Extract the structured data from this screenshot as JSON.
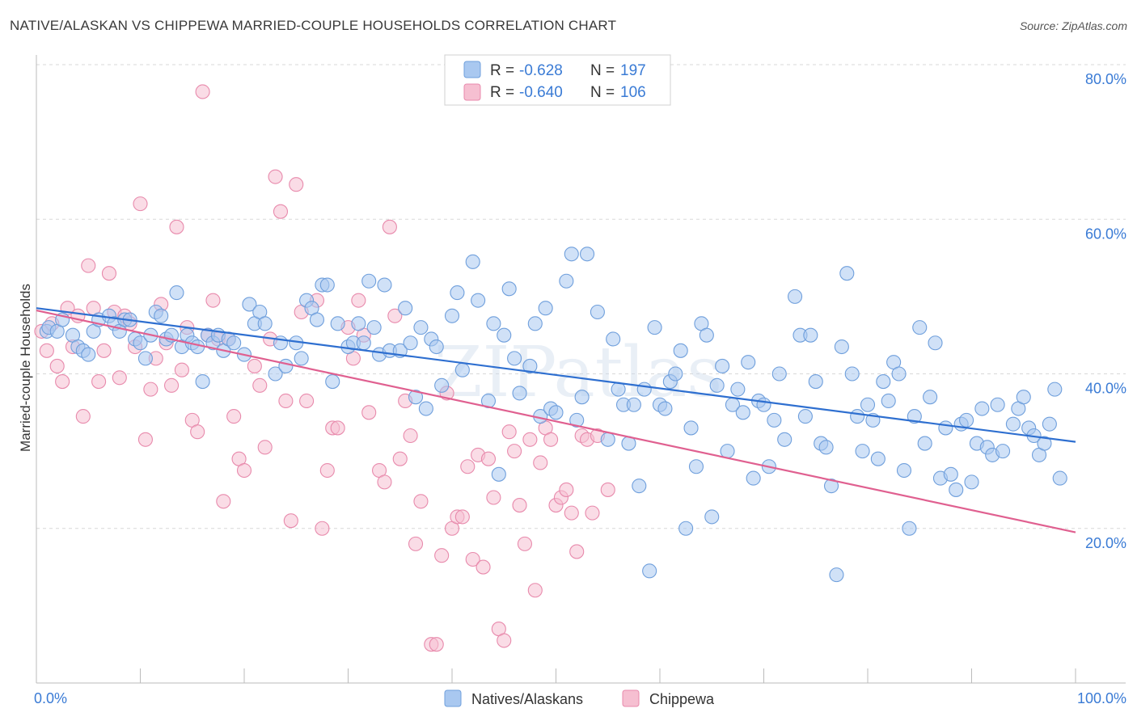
{
  "title": "NATIVE/ALASKAN VS CHIPPEWA MARRIED-COUPLE HOUSEHOLDS CORRELATION CHART",
  "source": "Source: ZipAtlas.com",
  "watermark": "ZIPatlas",
  "colors": {
    "blue_fill": "#a9c8f0",
    "blue_stroke": "#6f9fdc",
    "blue_line": "#2e6fd0",
    "pink_fill": "#f6bfd1",
    "pink_stroke": "#e88aac",
    "pink_line": "#e06090",
    "grid": "#d8d8d8",
    "tick_text": "#3a7bd5"
  },
  "legend": {
    "r_label": "R =",
    "n_label": "N =",
    "rows": [
      {
        "series": "Natives/Alaskans",
        "r": "-0.628",
        "n": "197"
      },
      {
        "series": "Chippewa",
        "r": "-0.640",
        "n": "106"
      }
    ]
  },
  "chart_data": {
    "type": "scatter",
    "xlabel": "",
    "ylabel": "Married-couple Households",
    "xlim": [
      0,
      100
    ],
    "ylim": [
      0,
      80
    ],
    "x_tick_labels": [
      {
        "value": 0,
        "label": "0.0%"
      },
      {
        "value": 100,
        "label": "100.0%"
      }
    ],
    "y_tick_labels": [
      {
        "value": 20,
        "label": "20.0%"
      },
      {
        "value": 40,
        "label": "40.0%"
      },
      {
        "value": 60,
        "label": "60.0%"
      },
      {
        "value": 80,
        "label": "80.0%"
      }
    ],
    "x_minor_ticks": [
      0,
      10,
      20,
      30,
      40,
      50,
      60,
      70,
      80,
      90,
      100
    ],
    "series": [
      {
        "name": "Natives/Alaskans",
        "trend": {
          "x0": 0,
          "y0": 48.5,
          "x1": 100,
          "y1": 31.2
        },
        "points": [
          [
            1,
            45.5
          ],
          [
            1.2,
            46
          ],
          [
            2,
            45.5
          ],
          [
            2.5,
            47
          ],
          [
            3.5,
            45
          ],
          [
            4,
            43.5
          ],
          [
            4.5,
            43
          ],
          [
            5,
            42.5
          ],
          [
            5.5,
            45.5
          ],
          [
            6,
            47
          ],
          [
            7,
            47.5
          ],
          [
            7.5,
            46.5
          ],
          [
            8,
            45.5
          ],
          [
            8.5,
            47
          ],
          [
            9,
            47
          ],
          [
            9.5,
            44.5
          ],
          [
            10,
            44
          ],
          [
            10.5,
            42
          ],
          [
            11,
            45
          ],
          [
            11.5,
            48
          ],
          [
            12,
            47.5
          ],
          [
            12.5,
            44.5
          ],
          [
            13,
            45
          ],
          [
            13.5,
            50.5
          ],
          [
            14,
            43.5
          ],
          [
            14.5,
            45
          ],
          [
            15,
            44
          ],
          [
            15.5,
            43.5
          ],
          [
            16,
            39
          ],
          [
            16.5,
            45
          ],
          [
            17,
            44
          ],
          [
            17.5,
            45
          ],
          [
            18,
            43
          ],
          [
            18.5,
            44.5
          ],
          [
            19,
            44
          ],
          [
            20,
            42.5
          ],
          [
            20.5,
            49
          ],
          [
            21,
            46.5
          ],
          [
            21.5,
            48
          ],
          [
            22,
            46.5
          ],
          [
            23,
            40
          ],
          [
            23.5,
            44
          ],
          [
            24,
            41
          ],
          [
            25,
            44
          ],
          [
            25.5,
            42
          ],
          [
            26,
            49.5
          ],
          [
            26.5,
            48.5
          ],
          [
            27,
            47
          ],
          [
            27.5,
            51.5
          ],
          [
            28,
            51.5
          ],
          [
            28.5,
            39
          ],
          [
            29,
            46.5
          ],
          [
            30,
            43.5
          ],
          [
            30.5,
            44
          ],
          [
            31,
            46.5
          ],
          [
            31.5,
            44
          ],
          [
            32,
            52
          ],
          [
            32.5,
            46
          ],
          [
            33,
            42.5
          ],
          [
            33.5,
            51.5
          ],
          [
            34,
            43
          ],
          [
            35,
            43
          ],
          [
            35.5,
            48.5
          ],
          [
            36,
            44
          ],
          [
            36.5,
            37
          ],
          [
            37,
            46
          ],
          [
            37.5,
            35.5
          ],
          [
            38,
            44.5
          ],
          [
            38.5,
            43.5
          ],
          [
            39,
            38.5
          ],
          [
            40,
            47.5
          ],
          [
            40.5,
            50.5
          ],
          [
            41,
            40.5
          ],
          [
            42,
            54.5
          ],
          [
            42.5,
            49.5
          ],
          [
            43.5,
            36.5
          ],
          [
            44,
            46.5
          ],
          [
            44.5,
            27
          ],
          [
            45,
            45
          ],
          [
            45.5,
            51
          ],
          [
            46,
            42
          ],
          [
            46.5,
            37.5
          ],
          [
            47.5,
            41
          ],
          [
            48,
            46.5
          ],
          [
            48.5,
            34.5
          ],
          [
            49,
            48.5
          ],
          [
            49.5,
            35.5
          ],
          [
            50,
            35
          ],
          [
            51,
            52
          ],
          [
            51.5,
            55.5
          ],
          [
            52,
            34
          ],
          [
            52.5,
            37
          ],
          [
            53,
            55.5
          ],
          [
            54,
            48
          ],
          [
            55,
            31.5
          ],
          [
            55.5,
            44.5
          ],
          [
            56,
            38
          ],
          [
            56.5,
            36
          ],
          [
            57,
            31
          ],
          [
            57.5,
            36
          ],
          [
            58,
            25.5
          ],
          [
            58.5,
            38
          ],
          [
            59,
            14.5
          ],
          [
            59.5,
            46
          ],
          [
            60,
            36
          ],
          [
            60.5,
            35.5
          ],
          [
            61,
            39
          ],
          [
            61.5,
            40
          ],
          [
            62,
            43
          ],
          [
            62.5,
            20
          ],
          [
            63,
            33
          ],
          [
            63.5,
            28
          ],
          [
            64,
            46.5
          ],
          [
            64.5,
            45
          ],
          [
            65,
            21.5
          ],
          [
            65.5,
            38.5
          ],
          [
            66,
            41
          ],
          [
            66.5,
            30
          ],
          [
            67,
            36
          ],
          [
            67.5,
            38
          ],
          [
            68,
            35
          ],
          [
            68.5,
            41.5
          ],
          [
            69,
            26.5
          ],
          [
            69.5,
            36.5
          ],
          [
            70,
            36
          ],
          [
            70.5,
            28
          ],
          [
            71,
            34
          ],
          [
            71.5,
            40
          ],
          [
            72,
            31.5
          ],
          [
            73,
            50
          ],
          [
            73.5,
            45
          ],
          [
            74,
            34.5
          ],
          [
            74.5,
            45
          ],
          [
            75,
            39
          ],
          [
            75.5,
            31
          ],
          [
            76,
            30.5
          ],
          [
            76.5,
            25.5
          ],
          [
            77,
            14
          ],
          [
            77.5,
            43.5
          ],
          [
            78,
            53
          ],
          [
            78.5,
            40
          ],
          [
            79,
            34.5
          ],
          [
            79.5,
            30
          ],
          [
            80,
            36
          ],
          [
            80.5,
            34
          ],
          [
            81,
            29
          ],
          [
            81.5,
            39
          ],
          [
            82,
            36.5
          ],
          [
            82.5,
            41.5
          ],
          [
            83,
            40
          ],
          [
            83.5,
            27.5
          ],
          [
            84,
            20
          ],
          [
            84.5,
            34.5
          ],
          [
            85,
            46
          ],
          [
            85.5,
            31
          ],
          [
            86,
            37
          ],
          [
            86.5,
            44
          ],
          [
            87,
            26.5
          ],
          [
            87.5,
            33
          ],
          [
            88,
            27
          ],
          [
            88.5,
            25
          ],
          [
            89,
            33.5
          ],
          [
            89.5,
            34
          ],
          [
            90,
            26
          ],
          [
            90.5,
            31
          ],
          [
            91,
            35.5
          ],
          [
            91.5,
            30.5
          ],
          [
            92,
            29.5
          ],
          [
            92.5,
            36
          ],
          [
            93,
            30
          ],
          [
            94,
            33.5
          ],
          [
            94.5,
            35.5
          ],
          [
            95,
            37
          ],
          [
            95.5,
            33
          ],
          [
            96,
            32
          ],
          [
            96.5,
            29.5
          ],
          [
            97,
            31
          ],
          [
            97.5,
            33.5
          ],
          [
            98,
            38
          ],
          [
            98.5,
            26.5
          ]
        ]
      },
      {
        "name": "Chippewa",
        "trend": {
          "x0": 0,
          "y0": 48.2,
          "x1": 100,
          "y1": 19.5
        },
        "points": [
          [
            0.5,
            45.5
          ],
          [
            1,
            43
          ],
          [
            1.5,
            46.5
          ],
          [
            2,
            41
          ],
          [
            2.5,
            39
          ],
          [
            3,
            48.5
          ],
          [
            3.5,
            43.5
          ],
          [
            4,
            47.5
          ],
          [
            4.5,
            34.5
          ],
          [
            5,
            54
          ],
          [
            5.5,
            48.5
          ],
          [
            6,
            39
          ],
          [
            6.5,
            43
          ],
          [
            7,
            53
          ],
          [
            7.5,
            48
          ],
          [
            8,
            39.5
          ],
          [
            8.5,
            47.5
          ],
          [
            9,
            46.5
          ],
          [
            9.5,
            43.5
          ],
          [
            10,
            62
          ],
          [
            10.5,
            31.5
          ],
          [
            11,
            38
          ],
          [
            11.5,
            42
          ],
          [
            12,
            49
          ],
          [
            12.5,
            44
          ],
          [
            13,
            38.5
          ],
          [
            13.5,
            59
          ],
          [
            14,
            40.5
          ],
          [
            14.5,
            46
          ],
          [
            15,
            34
          ],
          [
            15.5,
            32.5
          ],
          [
            16,
            76.5
          ],
          [
            16.5,
            45
          ],
          [
            17,
            49.5
          ],
          [
            17.5,
            44.5
          ],
          [
            18,
            23.5
          ],
          [
            18.5,
            44.5
          ],
          [
            19,
            34.5
          ],
          [
            19.5,
            29
          ],
          [
            20,
            27.5
          ],
          [
            21,
            41
          ],
          [
            21.5,
            38.5
          ],
          [
            22,
            30.5
          ],
          [
            22.5,
            44.5
          ],
          [
            23,
            65.5
          ],
          [
            23.5,
            61
          ],
          [
            24,
            36.5
          ],
          [
            24.5,
            21
          ],
          [
            25,
            64.5
          ],
          [
            25.5,
            48
          ],
          [
            26,
            36.5
          ],
          [
            27,
            49.5
          ],
          [
            27.5,
            20
          ],
          [
            28,
            27.5
          ],
          [
            28.5,
            33
          ],
          [
            29,
            33
          ],
          [
            30,
            46
          ],
          [
            30.5,
            42
          ],
          [
            31,
            49.5
          ],
          [
            31.5,
            45
          ],
          [
            32,
            35
          ],
          [
            33,
            27.5
          ],
          [
            33.5,
            26
          ],
          [
            34,
            59
          ],
          [
            34.5,
            47.5
          ],
          [
            35,
            29
          ],
          [
            35.5,
            36.5
          ],
          [
            36,
            32
          ],
          [
            36.5,
            18
          ],
          [
            37,
            23.5
          ],
          [
            38,
            5
          ],
          [
            38.5,
            5
          ],
          [
            39,
            16.5
          ],
          [
            39.5,
            37.5
          ],
          [
            40,
            20
          ],
          [
            40.5,
            21.5
          ],
          [
            41,
            21.5
          ],
          [
            41.5,
            28
          ],
          [
            42,
            16
          ],
          [
            42.5,
            29.5
          ],
          [
            43,
            15
          ],
          [
            43.5,
            29
          ],
          [
            44,
            24
          ],
          [
            44.5,
            7
          ],
          [
            45,
            5.5
          ],
          [
            45.5,
            32.5
          ],
          [
            46,
            30
          ],
          [
            46.5,
            23
          ],
          [
            47,
            18
          ],
          [
            47.5,
            31.5
          ],
          [
            48,
            12
          ],
          [
            48.5,
            28.5
          ],
          [
            49,
            33
          ],
          [
            49.5,
            31.5
          ],
          [
            50,
            23
          ],
          [
            50.5,
            24
          ],
          [
            51,
            25
          ],
          [
            51.5,
            22
          ],
          [
            52,
            17
          ],
          [
            52.5,
            32
          ],
          [
            53,
            31.5
          ],
          [
            53.5,
            22
          ],
          [
            54,
            32
          ],
          [
            55,
            25
          ]
        ]
      }
    ]
  },
  "bottom_legend": [
    "Natives/Alaskans",
    "Chippewa"
  ]
}
